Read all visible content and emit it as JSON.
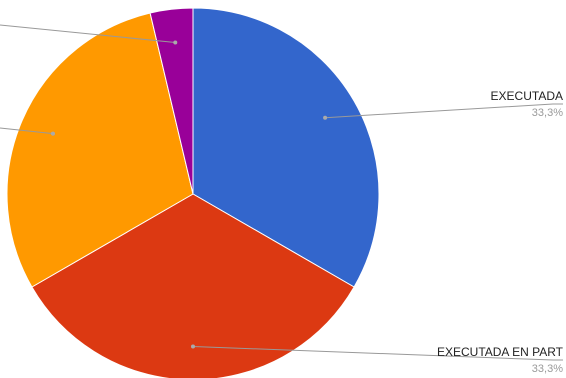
{
  "chart_data": {
    "type": "pie",
    "title": "",
    "slices": [
      {
        "label": "EXECUTADA",
        "value": 33.3,
        "percent_label": "33,3%",
        "color": "#3366CC"
      },
      {
        "label": "EXECUTADA EN PART",
        "value": 33.3,
        "percent_label": "33,3%",
        "color": "#DC3912"
      },
      {
        "label": "",
        "value": 29.6,
        "percent_label": "",
        "color": "#FF9900"
      },
      {
        "label": "",
        "value": 3.7,
        "percent_label": "",
        "color": "#990099"
      }
    ],
    "legend": "none",
    "start_angle_deg": 0,
    "direction": "clockwise"
  }
}
